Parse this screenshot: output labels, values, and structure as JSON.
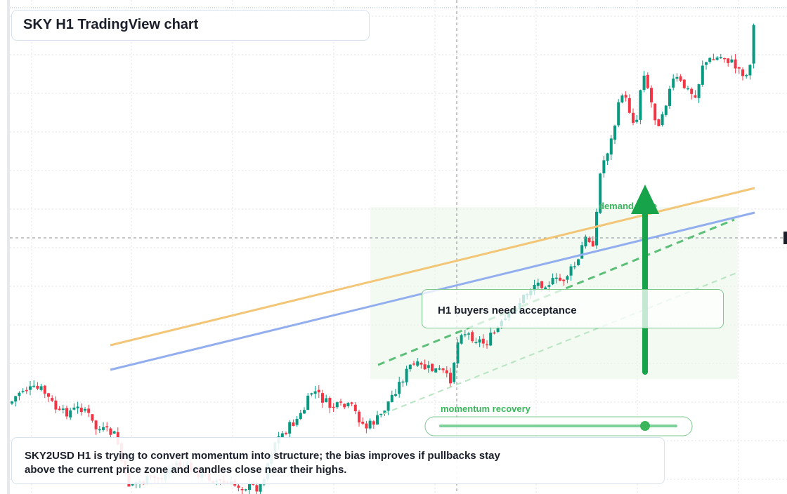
{
  "header": {
    "title": "SKY H1 TradingView chart"
  },
  "annotations": {
    "zone_label": "demand zone",
    "callout": "H1 buyers need acceptance",
    "meter_label": "momentum recovery"
  },
  "footer": {
    "text": "SKY2USD H1 is trying to convert momentum into structure; the bias improves if pullbacks stay above the current price zone and candles close near their highs."
  }
}
